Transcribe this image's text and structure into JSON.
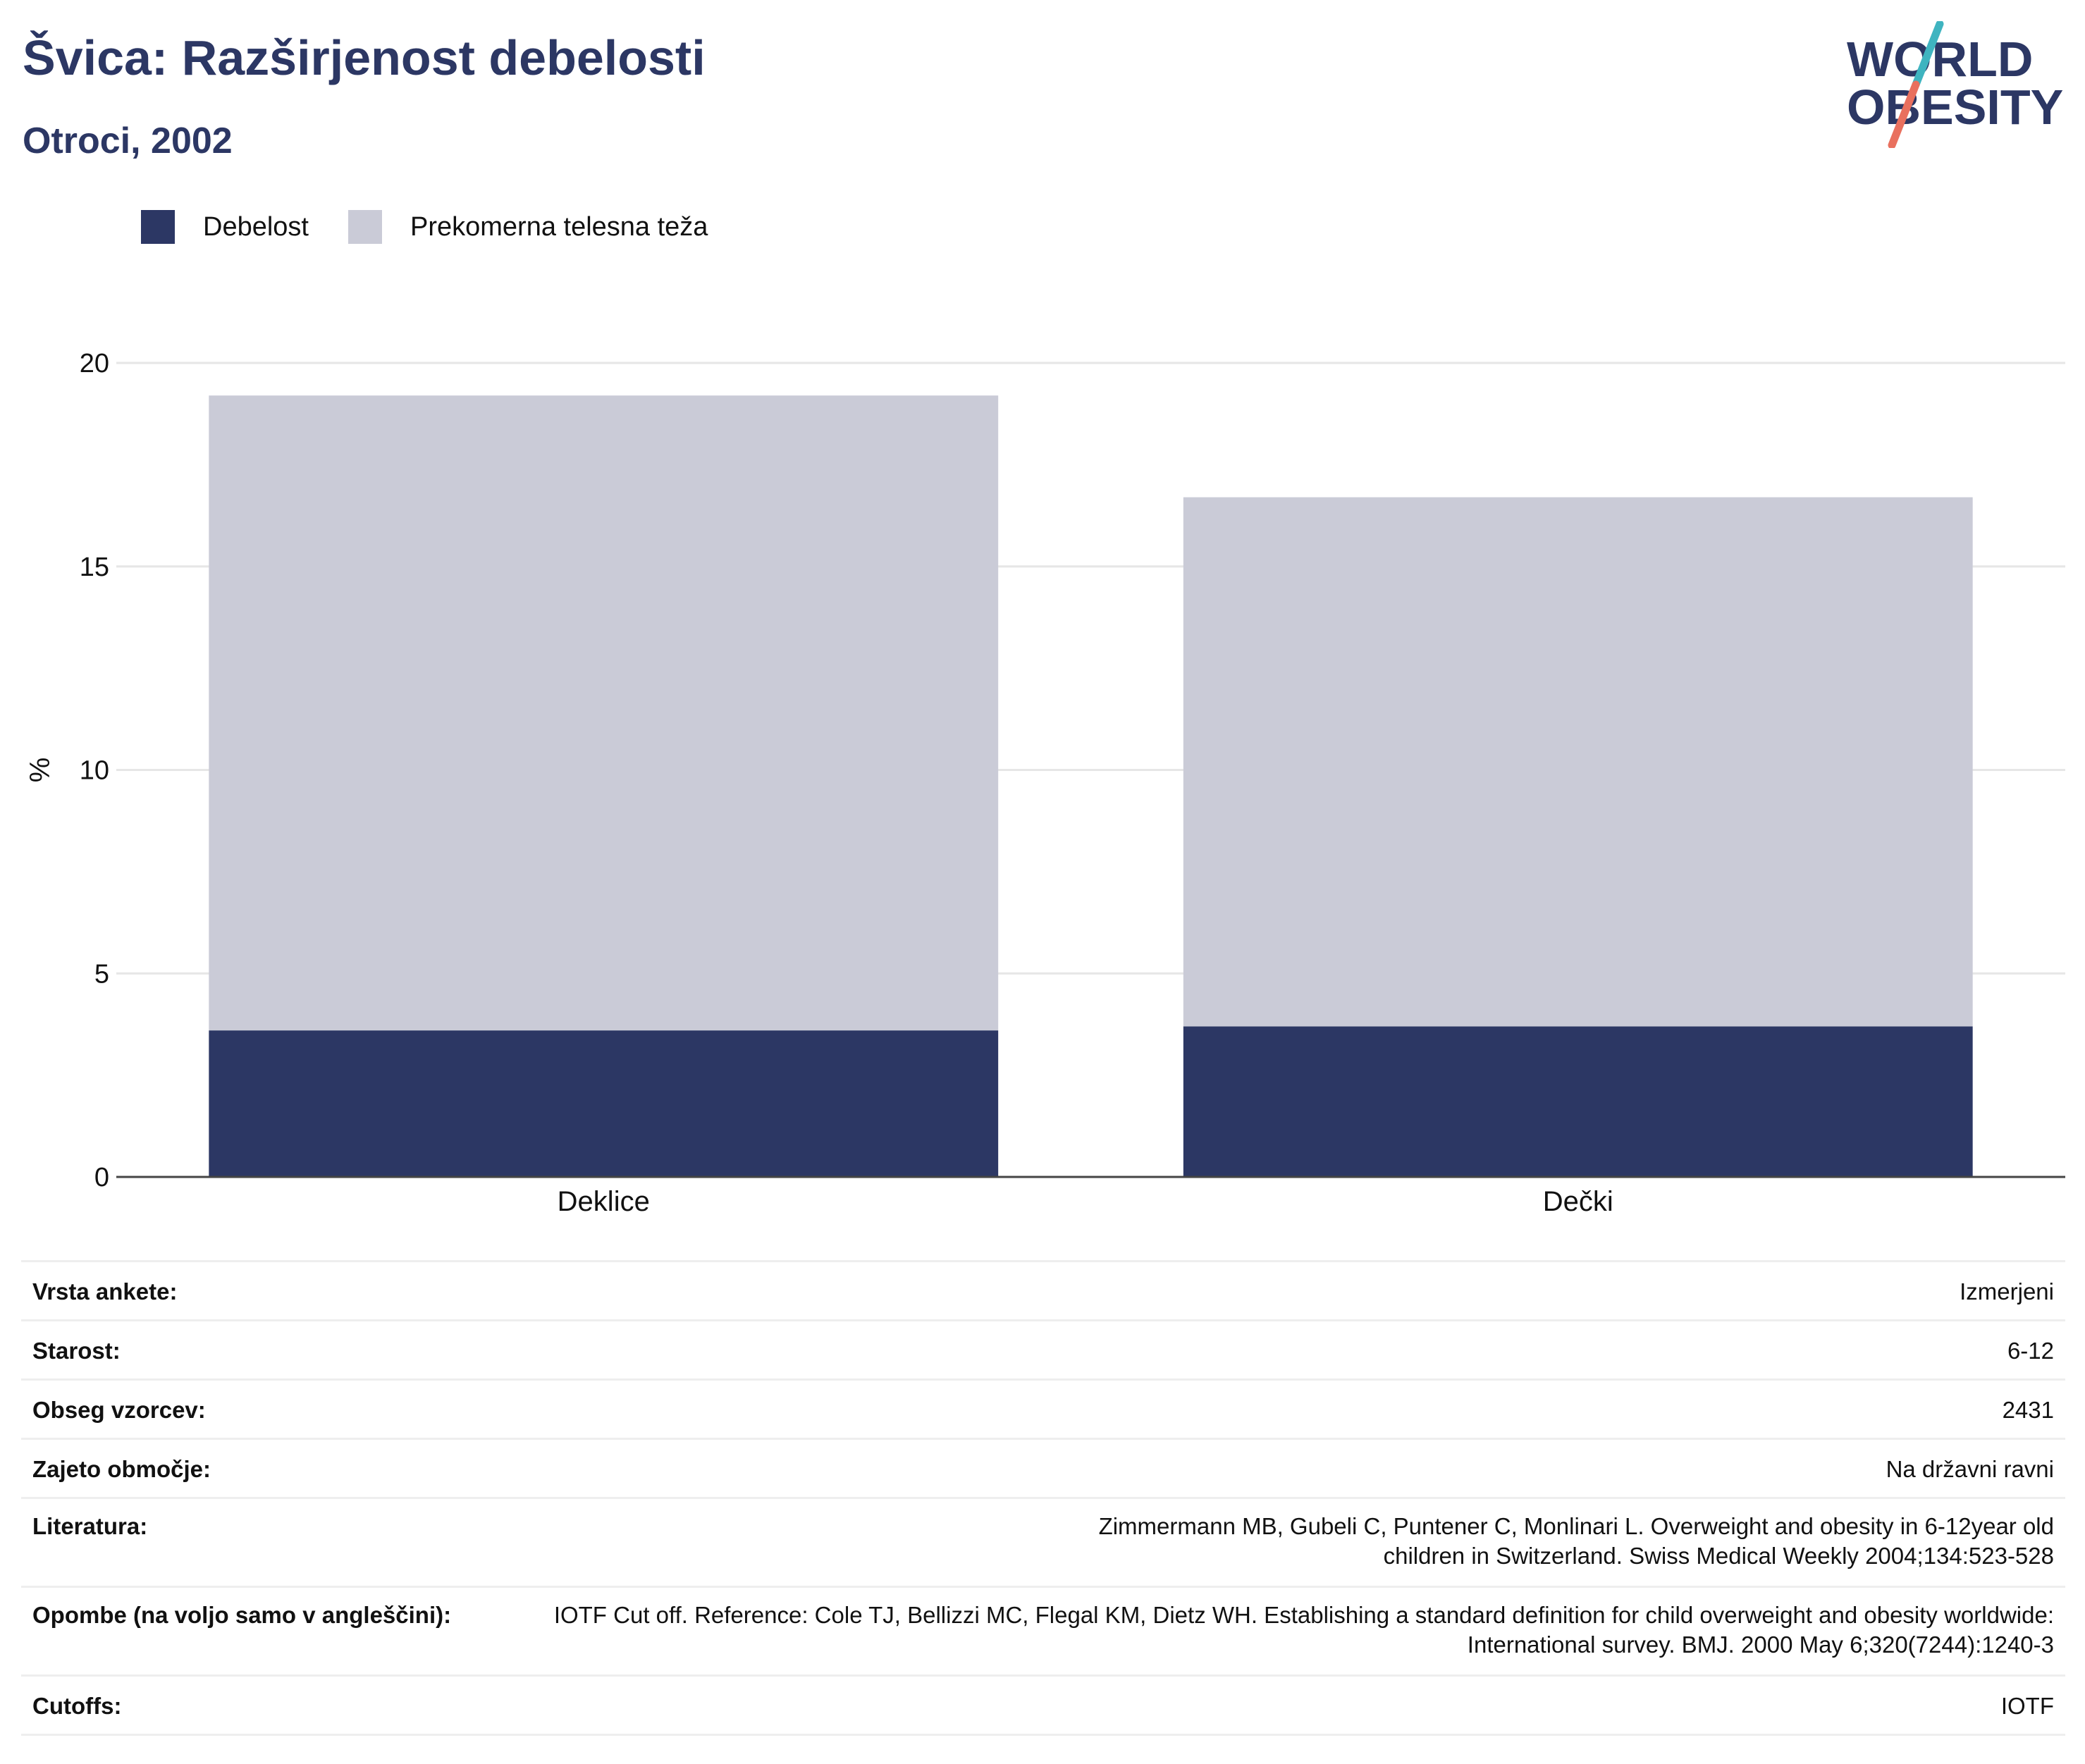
{
  "header": {
    "title": "Švica: Razširjenost debelosti",
    "subtitle": "Otroci, 2002"
  },
  "logo": {
    "line1": "WORLD",
    "line2": "OBESITY",
    "colors": {
      "navy": "#2c3764",
      "teal": "#3fb4c0",
      "coral": "#e9705e"
    }
  },
  "legend": [
    {
      "label": "Debelost",
      "color": "#2c3764"
    },
    {
      "label": "Prekomerna telesna teža",
      "color": "#cacbd7"
    }
  ],
  "chart_data": {
    "type": "bar",
    "stacked": true,
    "categories": [
      "Deklice",
      "Dečki"
    ],
    "series": [
      {
        "name": "Debelost",
        "color": "#2c3764",
        "values": [
          3.6,
          3.7
        ]
      },
      {
        "name": "Prekomerna telesna teža",
        "color": "#cacbd7",
        "values": [
          15.6,
          13.0
        ]
      }
    ],
    "ylabel": "%",
    "ylim": [
      0,
      20
    ],
    "yticks": [
      0,
      5,
      10,
      15,
      20
    ],
    "grid": true,
    "legend_position": "top-left"
  },
  "info": [
    {
      "label": "Vrsta ankete:",
      "value": "Izmerjeni"
    },
    {
      "label": "Starost:",
      "value": "6-12"
    },
    {
      "label": "Obseg vzorcev:",
      "value": "2431"
    },
    {
      "label": "Zajeto območje:",
      "value": "Na državni ravni"
    },
    {
      "label": "Literatura:",
      "value": "Zimmermann MB, Gubeli C, Puntener C, Monlinari L. Overweight and obesity in 6-12year old children in Switzerland. Swiss Medical Weekly 2004;134:523-528"
    },
    {
      "label": "Opombe (na voljo samo v angleščini):",
      "value": "IOTF Cut off. Reference: Cole TJ, Bellizzi MC, Flegal KM, Dietz WH. Establishing a standard definition for child overweight and obesity worldwide: International survey. BMJ. 2000 May 6;320(7244):1240-3"
    },
    {
      "label": "Cutoffs:",
      "value": "IOTF"
    }
  ]
}
